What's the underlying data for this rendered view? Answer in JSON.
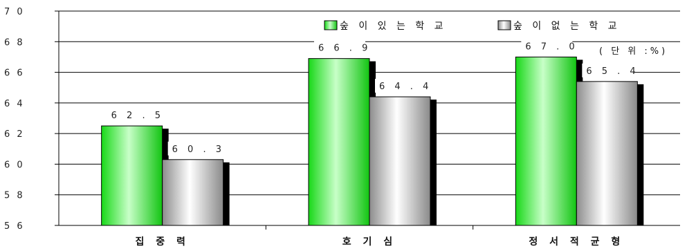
{
  "chart_data": {
    "type": "bar",
    "categories": [
      "집 중 력",
      "호 기 심",
      "정 서 적 균 형"
    ],
    "series": [
      {
        "name": "숲 이  있 는  학 교",
        "values": [
          62.5,
          66.9,
          67.0
        ],
        "labels": [
          "6 2 . 5",
          "6 6 . 9",
          "6 7 . 0"
        ],
        "color": "#33ee33"
      },
      {
        "name": "숲 이  없 는  학 교",
        "values": [
          60.3,
          64.4,
          65.4
        ],
        "labels": [
          "6 0 . 3",
          "6 4 . 4",
          "6 5 . 4"
        ],
        "color": "#bbbbbb"
      }
    ],
    "ylim": [
      56,
      70
    ],
    "yticks": [
      56,
      58,
      60,
      62,
      64,
      66,
      68,
      70
    ],
    "ytick_labels": [
      "5 6",
      "5 8",
      "6 0",
      "6 2",
      "6 4",
      "6 6",
      "6 8",
      "7 0"
    ],
    "unit_note": "( 단 위 :%)",
    "grid": true,
    "legend_position": "top-right",
    "title": "",
    "xlabel": "",
    "ylabel": ""
  }
}
